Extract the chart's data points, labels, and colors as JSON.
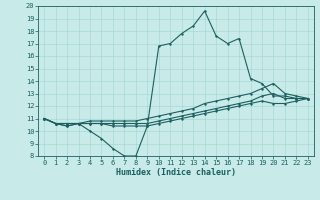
{
  "background_color": "#c8eae8",
  "grid_color": "#a8d8d4",
  "line_color": "#1a6060",
  "xlabel": "Humidex (Indice chaleur)",
  "xlim": [
    -0.5,
    23.5
  ],
  "ylim": [
    8,
    20
  ],
  "xticks": [
    0,
    1,
    2,
    3,
    4,
    5,
    6,
    7,
    8,
    9,
    10,
    11,
    12,
    13,
    14,
    15,
    16,
    17,
    18,
    19,
    20,
    21,
    22,
    23
  ],
  "yticks": [
    8,
    9,
    10,
    11,
    12,
    13,
    14,
    15,
    16,
    17,
    18,
    19,
    20
  ],
  "line1_x": [
    0,
    1,
    2,
    3,
    4,
    5,
    6,
    7,
    8,
    9,
    10,
    11,
    12,
    13,
    14,
    15,
    16,
    17,
    18,
    19,
    20,
    21,
    22,
    23
  ],
  "line1_y": [
    11.0,
    10.6,
    10.4,
    10.6,
    10.0,
    9.4,
    8.6,
    8.0,
    8.0,
    10.4,
    16.8,
    17.0,
    17.8,
    18.4,
    19.6,
    17.6,
    17.0,
    17.4,
    14.2,
    13.8,
    12.8,
    12.8,
    12.6,
    12.6
  ],
  "line2_x": [
    0,
    1,
    2,
    3,
    4,
    5,
    6,
    7,
    8,
    9,
    10,
    11,
    12,
    13,
    14,
    15,
    16,
    17,
    18,
    19,
    20,
    21,
    22,
    23
  ],
  "line2_y": [
    11.0,
    10.6,
    10.6,
    10.6,
    10.8,
    10.8,
    10.8,
    10.8,
    10.8,
    11.0,
    11.2,
    11.4,
    11.6,
    11.8,
    12.2,
    12.4,
    12.6,
    12.8,
    13.0,
    13.4,
    13.8,
    13.0,
    12.8,
    12.6
  ],
  "line3_x": [
    0,
    1,
    2,
    3,
    4,
    5,
    6,
    7,
    8,
    9,
    10,
    11,
    12,
    13,
    14,
    15,
    16,
    17,
    18,
    19,
    20,
    21,
    22,
    23
  ],
  "line3_y": [
    11.0,
    10.6,
    10.6,
    10.6,
    10.6,
    10.6,
    10.6,
    10.6,
    10.6,
    10.6,
    10.8,
    11.0,
    11.2,
    11.4,
    11.6,
    11.8,
    12.0,
    12.2,
    12.4,
    12.8,
    13.0,
    12.6,
    12.6,
    12.6
  ],
  "line4_x": [
    0,
    1,
    2,
    3,
    4,
    5,
    6,
    7,
    8,
    9,
    10,
    11,
    12,
    13,
    14,
    15,
    16,
    17,
    18,
    19,
    20,
    21,
    22,
    23
  ],
  "line4_y": [
    11.0,
    10.6,
    10.4,
    10.6,
    10.6,
    10.6,
    10.4,
    10.4,
    10.4,
    10.4,
    10.6,
    10.8,
    11.0,
    11.2,
    11.4,
    11.6,
    11.8,
    12.0,
    12.2,
    12.4,
    12.2,
    12.2,
    12.4,
    12.6
  ],
  "tick_fontsize": 5,
  "xlabel_fontsize": 6
}
